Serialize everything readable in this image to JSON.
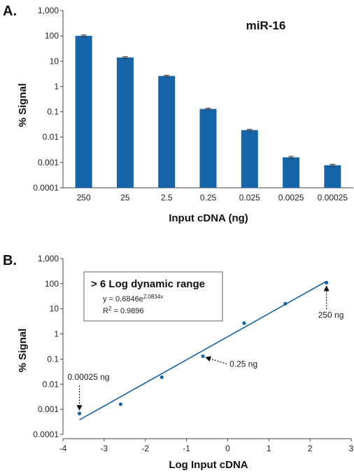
{
  "panels": {
    "a_label": "A.",
    "b_label": "B."
  },
  "chart_data": [
    {
      "type": "bar",
      "title": "miR-16",
      "xlabel": "Input cDNA (ng)",
      "ylabel": "% Signal",
      "yscale": "log",
      "ylim": [
        0.0001,
        1000
      ],
      "yticks": [
        "0.0001",
        "0.001",
        "0.01",
        "0.1",
        "1",
        "10",
        "100",
        "1,000"
      ],
      "categories": [
        "250",
        "25",
        "2.5",
        "0.25",
        "0.025",
        "0.0025",
        "0.00025"
      ],
      "values": [
        100,
        14,
        2.6,
        0.13,
        0.019,
        0.0016,
        0.00078
      ],
      "error_low": [
        92,
        12.8,
        2.4,
        0.12,
        0.0175,
        0.00145,
        0.00071
      ],
      "error_high": [
        108,
        15.2,
        2.8,
        0.14,
        0.0205,
        0.00175,
        0.00085
      ],
      "bar_color": "#1565a8",
      "grid": false
    },
    {
      "type": "scatter",
      "xlabel": "Log Input cDNA",
      "ylabel": "% Signal",
      "yscale": "log",
      "xlim": [
        -4,
        3
      ],
      "ylim": [
        0.0001,
        1000
      ],
      "xticks": [
        "-4",
        "-3",
        "-2",
        "-1",
        "0",
        "1",
        "2",
        "3"
      ],
      "yticks": [
        "0.0001",
        "0.001",
        "0.01",
        "0.1",
        "1",
        "10",
        "100",
        "1,000"
      ],
      "points": [
        {
          "x": -3.6,
          "y": 0.00068
        },
        {
          "x": -2.6,
          "y": 0.0016
        },
        {
          "x": -1.6,
          "y": 0.019
        },
        {
          "x": -0.6,
          "y": 0.13
        },
        {
          "x": 0.4,
          "y": 2.7
        },
        {
          "x": 1.4,
          "y": 16
        },
        {
          "x": 2.4,
          "y": 110
        }
      ],
      "trendline": {
        "x": [
          -3.6,
          2.4
        ],
        "y": [
          0.00038,
          125
        ]
      },
      "point_color": "#1565a8",
      "line_color": "#1565a8",
      "annotation_box": {
        "title": "> 6 Log dynamic range",
        "equation_base": "y = 0.6846e",
        "equation_exponent": "2.0834x",
        "r2_label": "R",
        "r2_sup": "2",
        "r2_value": " = 0.9896"
      },
      "callouts": [
        {
          "text": "0.00025 ng",
          "point_index": 0
        },
        {
          "text": "0.25 ng",
          "point_index": 3
        },
        {
          "text": "250 ng",
          "point_index": 6
        }
      ],
      "grid": false
    }
  ]
}
